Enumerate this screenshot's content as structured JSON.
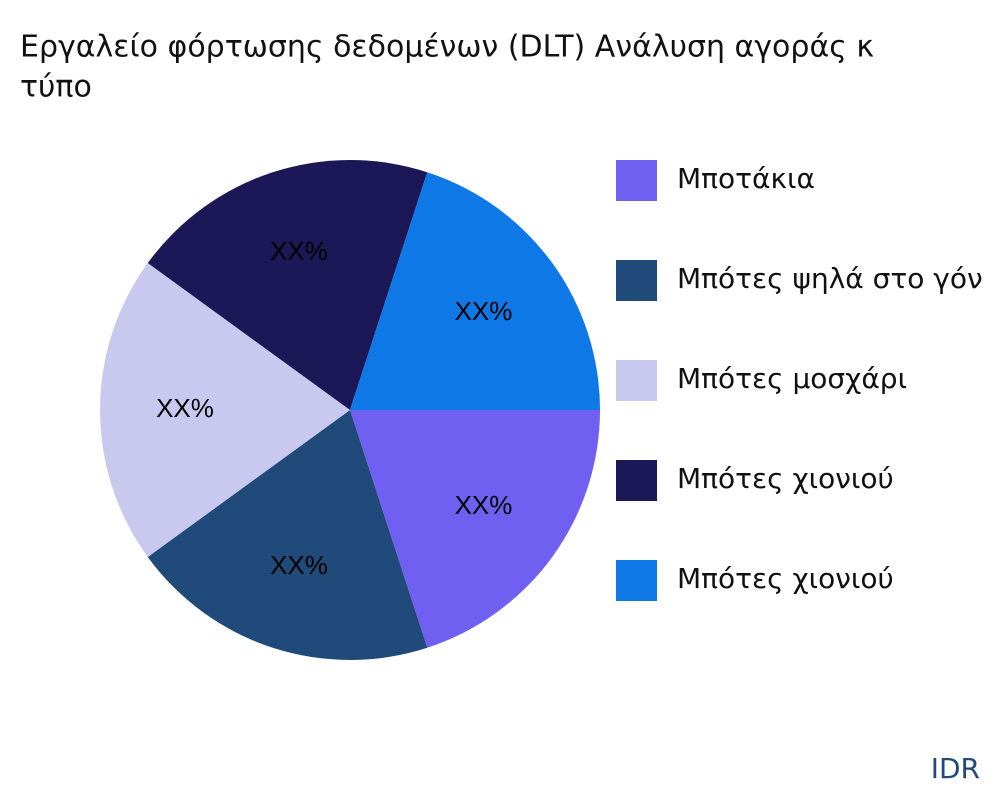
{
  "chart_data": {
    "type": "pie",
    "title": [
      "Εργαλείο φόρτωσης δεδομένων (DLT) Ανάλυση αγοράς κ",
      "τύπο"
    ],
    "categories": [
      "Μποτάκια",
      "Μπότες ψηλά στο γόν",
      "Μπότες μοσχάρι",
      "Μπότες χιονιού",
      "Μπότες χιονιού"
    ],
    "values": [
      20,
      20,
      20,
      20,
      20
    ],
    "value_labels": [
      "XX%",
      "XX%",
      "XX%",
      "XX%",
      "XX%"
    ],
    "colors": [
      "#7060f2",
      "#1f4a7a",
      "#c9c9f0",
      "#1c1756",
      "#0d78e6"
    ],
    "legend": "right",
    "watermark": "IDR"
  }
}
